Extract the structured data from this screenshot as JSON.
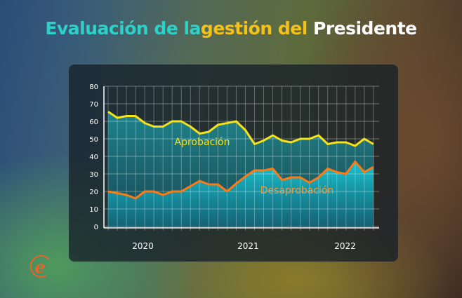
{
  "title": {
    "part1": "Evaluación de la",
    "part2": "gestión del",
    "part3": "Presidente"
  },
  "colors": {
    "title_teal": "#2fd0c8",
    "title_yellow": "#f5c21b",
    "approval_line": "#f5e21b",
    "disapproval_line": "#ff7a10",
    "area_fill": "#19d3e0",
    "logo": "#e8642c"
  },
  "logo": {
    "text": "e",
    "icon": "e-circle-logo"
  },
  "chart_data": {
    "type": "area",
    "title": "Evaluación de la gestión del Presidente",
    "xlabel": "",
    "ylabel": "",
    "ylim": [
      0,
      80
    ],
    "yticks": [
      "0",
      "10",
      "20",
      "30",
      "40",
      "50",
      "60",
      "70",
      "80"
    ],
    "year_labels": [
      {
        "label": "2020",
        "index": 3.8
      },
      {
        "label": "2021",
        "index": 15.3
      },
      {
        "label": "2022",
        "index": 25.9
      }
    ],
    "grid": true,
    "series": [
      {
        "name": "Aprobación",
        "values": [
          65.5,
          62,
          63,
          63,
          59,
          57,
          57,
          60,
          60,
          57,
          53,
          54,
          58,
          59,
          60,
          55,
          47,
          49,
          52,
          49,
          48,
          50,
          50,
          52,
          47,
          48,
          48,
          46,
          50,
          47
        ]
      },
      {
        "name": "Desaprobación",
        "values": [
          20,
          19,
          18,
          16,
          20,
          20,
          18,
          20,
          20,
          23,
          26,
          24,
          24,
          20,
          24.5,
          28.5,
          32,
          32,
          33,
          26.5,
          28,
          28,
          25,
          28,
          33,
          31,
          30,
          37,
          31,
          34
        ]
      }
    ]
  }
}
